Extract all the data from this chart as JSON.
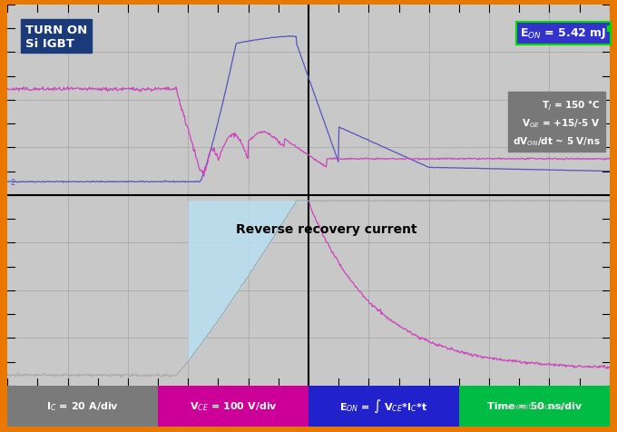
{
  "title": "TURN ON\nSi IGBT",
  "title_bg": "#1a3a7a",
  "title_color": "white",
  "plot_bg": "#c8c8c8",
  "grid_color": "#aaaaaa",
  "grid_dot_color": "#888888",
  "eon_label": "E$_{ON}$ = 5.42 mJ",
  "eon_bg": "#3333cc",
  "eon_color": "white",
  "eon_border": "#00dd00",
  "params_text": "T$_J$ = 150 °C\nV$_{GE}$ = +15/-5 V\ndV$_{ON}$/dt ~ 5 V/ns",
  "params_bg": "#787878",
  "params_color": "white",
  "rr_text": "Reverse recovery current",
  "rr_fill_color": "#b8dff0",
  "vce_color": "#5555bb",
  "ic_gray_color": "#aaaaaa",
  "vge_ic_color": "#cc44bb",
  "outer_border_color": "#e87800",
  "legend_items": [
    {
      "label": "I$_C$ = 20 A/div",
      "bg": "#7a7a7a",
      "color": "white"
    },
    {
      "label": "V$_{CE}$ = 100 V/div",
      "bg": "#cc0099",
      "color": "white"
    },
    {
      "label": "E$_{ON}$ = ∫ V$_{CE}$*I$_C$*t",
      "bg": "#2222cc",
      "color": "white"
    },
    {
      "label": "Time = 50 ns/div",
      "bg": "#00bb44",
      "color": "white"
    }
  ]
}
